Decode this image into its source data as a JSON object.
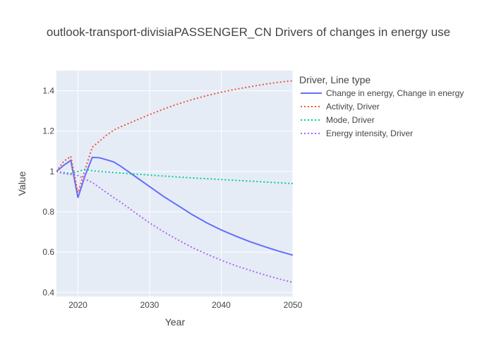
{
  "chart_data": {
    "type": "line",
    "title": "outlook-transport-divisiaPASSENGER_CN Drivers of changes in energy use",
    "xlabel": "Year",
    "ylabel": "Value",
    "xlim": [
      2017,
      2050
    ],
    "ylim": [
      0.38,
      1.5
    ],
    "x_ticks": [
      2020,
      2030,
      2040,
      2050
    ],
    "y_ticks": [
      0.4,
      0.6,
      0.8,
      1,
      1.2,
      1.4
    ],
    "x_tick_labels": [
      "2020",
      "2030",
      "2040",
      "2050"
    ],
    "y_tick_labels": [
      "0.4",
      "0.6",
      "0.8",
      "1",
      "1.2",
      "1.4"
    ],
    "grid": true,
    "legend_title": "Driver, Line type",
    "legend_position": "right",
    "series": [
      {
        "name": "Change in energy, Change in energy",
        "color": "#636efa",
        "dash": "solid",
        "x": [
          2017,
          2018,
          2019,
          2020,
          2021,
          2022,
          2023,
          2024,
          2025,
          2026,
          2027,
          2028,
          2030,
          2032,
          2034,
          2036,
          2038,
          2040,
          2042,
          2044,
          2046,
          2048,
          2050
        ],
        "y": [
          1.0,
          1.03,
          1.055,
          0.87,
          0.98,
          1.07,
          1.068,
          1.058,
          1.047,
          1.025,
          1.0,
          0.975,
          0.925,
          0.875,
          0.83,
          0.785,
          0.745,
          0.71,
          0.68,
          0.652,
          0.628,
          0.605,
          0.585
        ]
      },
      {
        "name": "Activity, Driver",
        "color": "#ef553b",
        "dash": "dot",
        "x": [
          2017,
          2018,
          2019,
          2020,
          2021,
          2022,
          2023,
          2024,
          2025,
          2026,
          2028,
          2030,
          2032,
          2034,
          2036,
          2038,
          2040,
          2042,
          2044,
          2046,
          2048,
          2050
        ],
        "y": [
          1.0,
          1.05,
          1.075,
          0.895,
          1.01,
          1.12,
          1.15,
          1.18,
          1.205,
          1.222,
          1.252,
          1.282,
          1.31,
          1.335,
          1.357,
          1.376,
          1.393,
          1.407,
          1.42,
          1.432,
          1.442,
          1.45
        ]
      },
      {
        "name": "Mode, Driver",
        "color": "#00cc96",
        "dash": "dot",
        "x": [
          2017,
          2018,
          2019,
          2020,
          2021,
          2022,
          2025,
          2030,
          2035,
          2040,
          2045,
          2050
        ],
        "y": [
          1.0,
          0.995,
          0.99,
          1.0,
          1.01,
          1.003,
          0.995,
          0.982,
          0.97,
          0.96,
          0.95,
          0.94
        ]
      },
      {
        "name": "Energy intensity, Driver",
        "color": "#ab63fa",
        "dash": "dot",
        "x": [
          2017,
          2018,
          2019,
          2020,
          2021,
          2022,
          2023,
          2024,
          2025,
          2026,
          2028,
          2030,
          2032,
          2034,
          2036,
          2038,
          2040,
          2042,
          2044,
          2046,
          2048,
          2050
        ],
        "y": [
          1.0,
          0.99,
          0.985,
          0.98,
          0.962,
          0.945,
          0.92,
          0.895,
          0.87,
          0.847,
          0.795,
          0.745,
          0.7,
          0.66,
          0.622,
          0.59,
          0.56,
          0.533,
          0.51,
          0.488,
          0.468,
          0.45
        ]
      }
    ]
  }
}
